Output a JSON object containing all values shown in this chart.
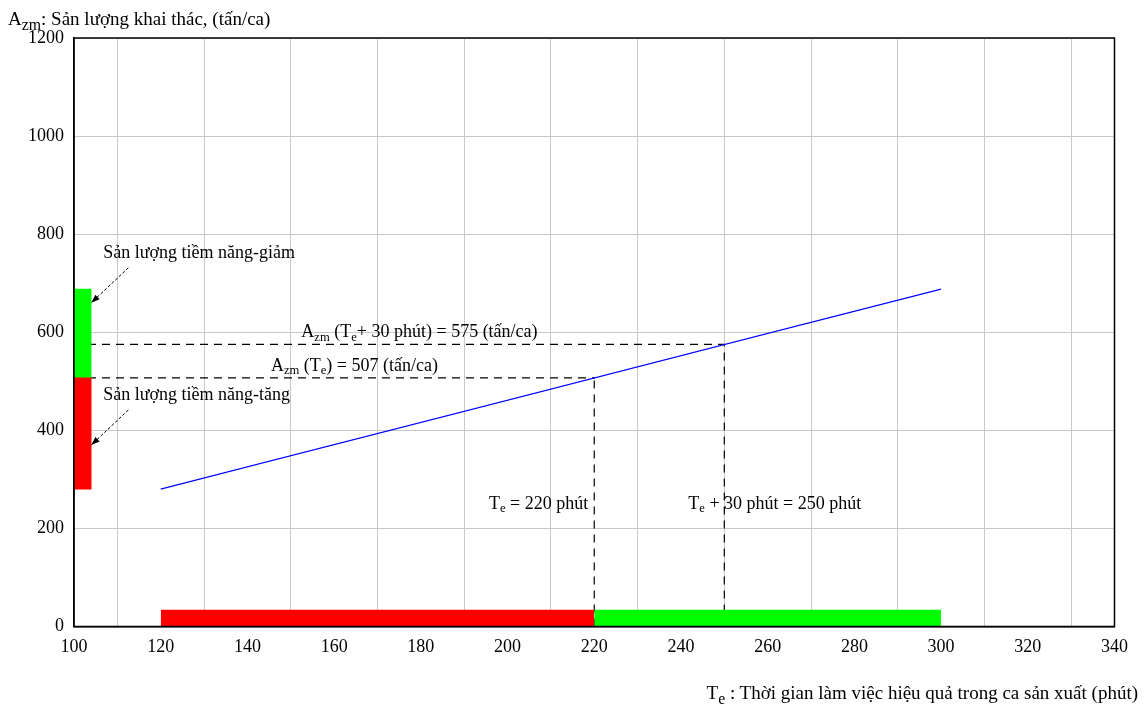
{
  "chart_data": {
    "type": "line",
    "xlabel": "T$_{e}$ : Thời gian làm việc hiệu quả trong ca sản xuất (phút)",
    "ylabel": "A$_{zm}$: Sản lượng khai thác, (tấn/ca)",
    "x": [
      120,
      300
    ],
    "series": [
      {
        "color": "#0000ff",
        "values": [
          280,
          688
        ]
      },
      {
        "type": "area",
        "color": "#ff0000",
        "x": [
          120,
          220
        ],
        "values": [
          34,
          34
        ]
      },
      {
        "type": "area",
        "color": "#00ff00",
        "x": [
          220,
          300
        ],
        "values": [
          34,
          34
        ]
      },
      {
        "type": "bar",
        "color": "#ff0000",
        "x": [
          102
        ],
        "base": [
          280
        ],
        "values": [
          227
        ]
      },
      {
        "type": "bar",
        "color": "#00ff00",
        "x": [
          102
        ],
        "base": [
          507
        ],
        "values": [
          181
        ]
      }
    ],
    "xlim": [
      100,
      340
    ],
    "xticks": [
      100,
      120,
      140,
      160,
      180,
      200,
      220,
      240,
      260,
      280,
      300,
      320,
      340
    ],
    "ylim": [
      0,
      1200
    ],
    "yticks": [
      0,
      200,
      400,
      600,
      800,
      1000,
      1200
    ],
    "grid": true,
    "marker": "none",
    "line_style": "solid",
    "ref_lines": [
      {
        "axis": "y",
        "value": 575,
        "label": "A$_{zm}$ (T$_{e}$+ 30 phút) = 575 (tấn/ca)",
        "color": "#000000",
        "line_style": "dashed"
      },
      {
        "axis": "y",
        "value": 507,
        "label": "A$_{zm}$ (T$_{e}$) = 507 (tấn/ca)",
        "color": "#000000",
        "line_style": "dashed"
      },
      {
        "axis": "x",
        "value": 220,
        "label": "T$_{e}$ = 220 phút",
        "color": "#000000",
        "line_style": "dashed"
      },
      {
        "axis": "x",
        "value": 250,
        "label": "T$_{e}$ + 30 phút = 250 phút",
        "color": "#000000",
        "line_style": "dashed"
      }
    ],
    "annotations": [
      {
        "text": "Sản lượng tiềm năng-giảm",
        "x": 104,
        "y": 660
      },
      {
        "text": "Sản lượng tiềm năng-tăng",
        "x": 104,
        "y": 370
      }
    ]
  }
}
